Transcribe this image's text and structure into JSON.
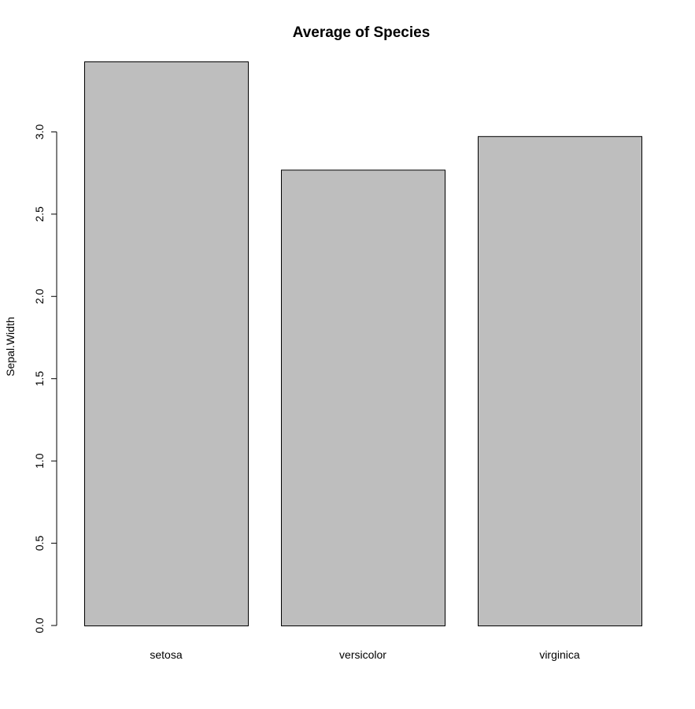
{
  "chart_data": {
    "type": "bar",
    "title": "Average of Species",
    "xlabel": "",
    "ylabel": "Sepal.Width",
    "categories": [
      "setosa",
      "versicolor",
      "virginica"
    ],
    "values": [
      3.428,
      2.77,
      2.974
    ],
    "ylim": [
      0,
      3.428
    ],
    "yticks": [
      "0.0",
      "0.5",
      "1.0",
      "1.5",
      "2.0",
      "2.5",
      "3.0"
    ],
    "bar_color": "#bebebe",
    "grid": false,
    "legend": "none"
  }
}
